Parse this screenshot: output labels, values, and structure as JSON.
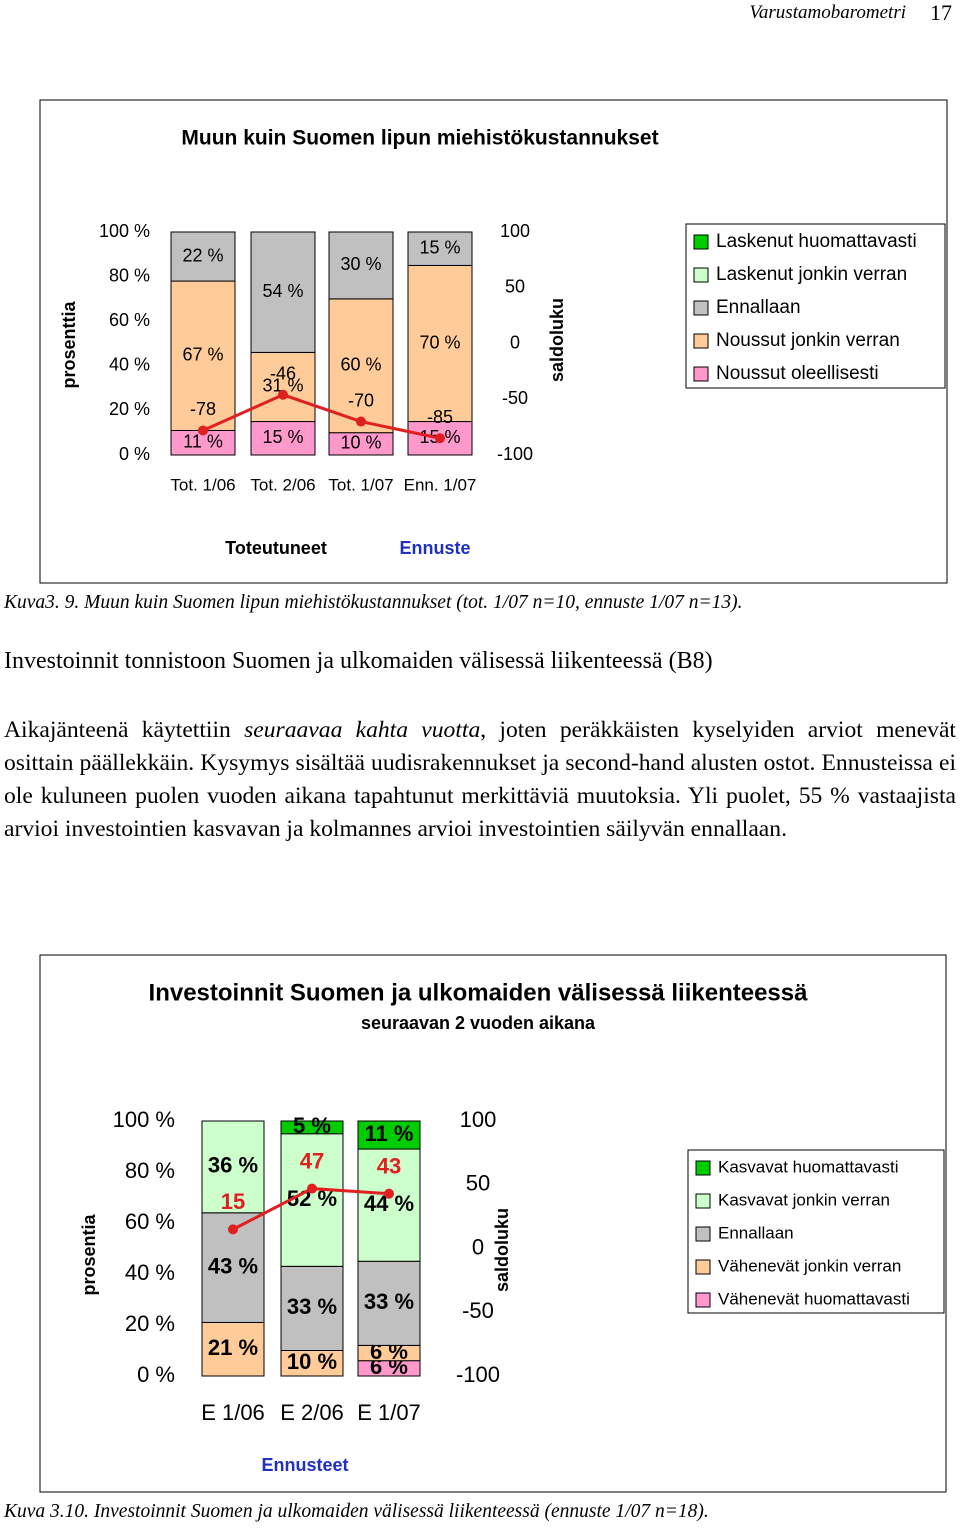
{
  "header": {
    "title": "Varustamobarometri",
    "page": "17"
  },
  "chart_data": [
    {
      "type": "stacked_bar",
      "title": "Muun kuin Suomen lipun miehistökustannukset",
      "ylabel": "prosenttia",
      "y2label": "saldoluku",
      "categories": [
        "Tot. 1/06",
        "Tot. 2/06",
        "Tot. 1/07",
        "Enn. 1/07"
      ],
      "group_labels": [
        {
          "label": "Toteutuneet",
          "color": "#000000"
        },
        {
          "label": "Ennuste",
          "color": "#1f2fc0"
        }
      ],
      "ylim": [
        0,
        100
      ],
      "yticks": [
        {
          "value": 0,
          "label": "0 %"
        },
        {
          "value": 20,
          "label": "20 %"
        },
        {
          "value": 40,
          "label": "40 %"
        },
        {
          "value": 60,
          "label": "60 %"
        },
        {
          "value": 80,
          "label": "80 %"
        },
        {
          "value": 100,
          "label": "100 %"
        }
      ],
      "y2lim": [
        -100,
        100
      ],
      "y2ticks": [
        -100,
        -50,
        0,
        50,
        100
      ],
      "series": [
        {
          "name": "Noussut oleellisesti",
          "color": "#ff99cc",
          "values": [
            11,
            15,
            10,
            15
          ],
          "value_labels": [
            "11 %",
            "15 %",
            "10 %",
            "15 %"
          ]
        },
        {
          "name": "Noussut jonkin verran",
          "color": "#ffcc99",
          "values": [
            67,
            31,
            60,
            70
          ],
          "value_labels": [
            "67 %",
            "31 %",
            "60 %",
            "70 %"
          ]
        },
        {
          "name": "Ennallaan",
          "color": "#c0c0c0",
          "values": [
            22,
            54,
            30,
            15
          ],
          "value_labels": [
            "22 %",
            "54 %",
            "30 %",
            "15 %"
          ]
        },
        {
          "name": "Laskenut jonkin verran",
          "color": "#ccffcc",
          "values": [
            0,
            0,
            0,
            0
          ],
          "value_labels": [
            null,
            null,
            null,
            null
          ]
        },
        {
          "name": "Laskenut huomattavasti",
          "color": "#00cc00",
          "values": [
            0,
            0,
            0,
            0
          ],
          "value_labels": [
            null,
            null,
            null,
            null
          ]
        }
      ],
      "legend_order": [
        4,
        3,
        2,
        1,
        0
      ],
      "balance": {
        "axis": "y2",
        "color": "#e02020",
        "label_color": "#000000",
        "values": [
          -78,
          -46,
          -70,
          -85
        ]
      }
    },
    {
      "type": "stacked_bar",
      "title": "Investoinnit Suomen ja ulkomaiden välisessä liikenteessä",
      "subtitle": "seuraavan 2 vuoden aikana",
      "ylabel": "prosentia",
      "y2label": "saldoluku",
      "categories": [
        "E 1/06",
        "E 2/06",
        "E 1/07"
      ],
      "group_labels": [
        {
          "label": "Ennusteet",
          "color": "#1f2fc0"
        }
      ],
      "ylim": [
        0,
        100
      ],
      "yticks": [
        {
          "value": 0,
          "label": "0 %"
        },
        {
          "value": 20,
          "label": "20 %"
        },
        {
          "value": 40,
          "label": "40 %"
        },
        {
          "value": 60,
          "label": "60 %"
        },
        {
          "value": 80,
          "label": "80 %"
        },
        {
          "value": 100,
          "label": "100 %"
        }
      ],
      "y2lim": [
        -100,
        100
      ],
      "y2ticks": [
        -100,
        -50,
        0,
        50,
        100
      ],
      "series": [
        {
          "name": "Vähenevät huomattavasti",
          "color": "#ff99cc",
          "values": [
            0,
            0,
            6
          ],
          "value_labels": [
            null,
            null,
            "6 %"
          ]
        },
        {
          "name": "Vähenevät jonkin verran",
          "color": "#ffcc99",
          "values": [
            21,
            10,
            6
          ],
          "value_labels": [
            "21 %",
            "10 %",
            "6 %"
          ]
        },
        {
          "name": "Ennallaan",
          "color": "#c0c0c0",
          "values": [
            43,
            33,
            33
          ],
          "value_labels": [
            "43 %",
            "33 %",
            "33 %"
          ]
        },
        {
          "name": "Kasvavat jonkin verran",
          "color": "#ccffcc",
          "values": [
            36,
            52,
            44
          ],
          "value_labels": [
            "36 %",
            "52 %",
            "44 %"
          ]
        },
        {
          "name": "Kasvavat huomattavasti",
          "color": "#00cc00",
          "values": [
            0,
            5,
            11
          ],
          "value_labels": [
            null,
            "5 %",
            "11 %"
          ]
        }
      ],
      "legend_order": [
        4,
        3,
        2,
        1,
        0
      ],
      "balance": {
        "axis": "y2",
        "color": "#e02020",
        "label_color": "#e02020",
        "values": [
          15,
          47,
          43
        ]
      }
    }
  ],
  "figure_captions": [
    "Kuva3. 9. Muun kuin Suomen lipun miehistökustannukset (tot. 1/07 n=10, ennuste 1/07 n=13).",
    "Kuva 3.10. Investoinnit Suomen ja ulkomaiden välisessä liikenteessä (ennuste 1/07 n=18)."
  ],
  "section": {
    "heading": "Investoinnit tonnistoon Suomen ja ulkomaiden välisessä liikenteessä (B8)",
    "paragraph": [
      "Aikajänteenä käytettiin ",
      "seuraavaa kahta vuotta",
      ", joten peräkkäisten kyselyiden arviot menevät osittain päällekkäin. Kysymys sisältää uudisrakennukset ja second-hand alusten ostot. Ennusteissa ei ole kuluneen puolen vuoden aikana tapahtunut merkittäviä muutoksia. Yli puolet, 55 % vastaajista arvioi investointien kasvavan ja kolmannes arvioi investointien säilyvän ennallaan."
    ]
  }
}
